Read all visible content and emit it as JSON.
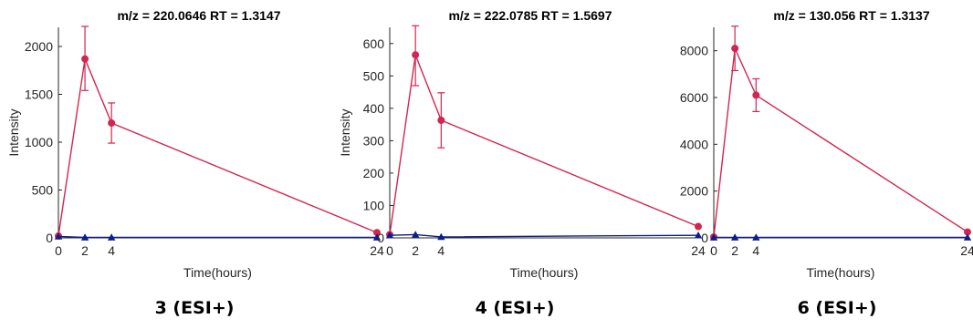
{
  "colors": {
    "treated": "#d2254f",
    "control": "#0b1f8a",
    "axis": "#262626",
    "text": "#262626"
  },
  "chart_data": [
    {
      "type": "line",
      "title": "m/z = 220.0646 RT = 1.3147",
      "xlabel": "Time(hours)",
      "ylabel": "Intensity",
      "caption": "3 (ESI+)",
      "x": [
        0,
        2,
        4,
        24
      ],
      "xticks": [
        "0",
        "2",
        "4",
        "24"
      ],
      "xlim": [
        0,
        24
      ],
      "ylim": [
        0,
        2200
      ],
      "yticks": [
        0,
        500,
        1000,
        1500,
        2000
      ],
      "ytick_labels": [
        "0",
        "500",
        "1000",
        "1500",
        "2000"
      ],
      "series": [
        {
          "values": [
            20,
            1870,
            1200,
            55
          ],
          "err_low": [
            0,
            330,
            210,
            0
          ],
          "err_high": [
            0,
            340,
            210,
            0
          ],
          "marker": "circle",
          "color": "#d2254f"
        },
        {
          "values": [
            15,
            5,
            5,
            5
          ],
          "marker": "triangle",
          "color": "#0b1f8a"
        }
      ]
    },
    {
      "type": "line",
      "title": "m/z = 222.0785 RT = 1.5697",
      "xlabel": "Time(hours)",
      "ylabel": "Intensity",
      "caption": "4 (ESI+)",
      "x": [
        0,
        2,
        4,
        24
      ],
      "xticks": [
        "0",
        "2",
        "4",
        "24"
      ],
      "xlim": [
        0,
        24
      ],
      "ylim": [
        0,
        650
      ],
      "yticks": [
        0,
        100,
        200,
        300,
        400,
        500,
        600
      ],
      "ytick_labels": [
        "0",
        "100",
        "200",
        "300",
        "400",
        "500",
        "600"
      ],
      "series": [
        {
          "values": [
            10,
            565,
            363,
            35
          ],
          "err_low": [
            0,
            95,
            85,
            0
          ],
          "err_high": [
            0,
            90,
            85,
            0
          ],
          "marker": "circle",
          "color": "#d2254f"
        },
        {
          "values": [
            8,
            10,
            3,
            8
          ],
          "marker": "triangle",
          "color": "#0b1f8a"
        }
      ]
    },
    {
      "type": "line",
      "title": "m/z = 130.056 RT = 1.3137",
      "xlabel": "Time(hours)",
      "ylabel": "",
      "caption": "6 (ESI+)",
      "x": [
        0,
        2,
        4,
        24
      ],
      "xticks": [
        "0",
        "2",
        "4",
        "24"
      ],
      "xlim": [
        0,
        24
      ],
      "ylim": [
        0,
        9000
      ],
      "yticks": [
        0,
        2000,
        4000,
        6000,
        8000
      ],
      "ytick_labels": [
        "0",
        "2000",
        "4000",
        "6000",
        "8000"
      ],
      "series": [
        {
          "values": [
            40,
            8100,
            6100,
            250
          ],
          "err_low": [
            0,
            950,
            700,
            0
          ],
          "err_high": [
            0,
            950,
            700,
            0
          ],
          "marker": "circle",
          "color": "#d2254f"
        },
        {
          "values": [
            20,
            20,
            20,
            20
          ],
          "marker": "triangle",
          "color": "#0b1f8a"
        }
      ]
    }
  ]
}
